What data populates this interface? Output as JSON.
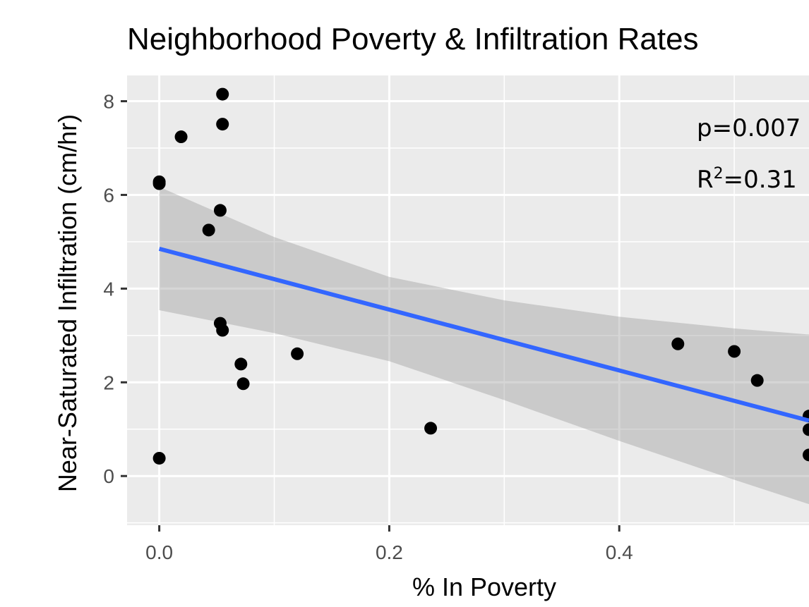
{
  "chart_data": {
    "type": "scatter",
    "title": "Neighborhood Poverty & Infiltration Rates",
    "xlabel": "% In Poverty",
    "ylabel": "Near-Saturated Infiltration (cm/hr)",
    "xlim": [
      -0.028,
      0.565
    ],
    "ylim": [
      -1.05,
      8.55
    ],
    "x_ticks": [
      0.0,
      0.2,
      0.4
    ],
    "x_tick_labels": [
      "0.0",
      "0.2",
      "0.4"
    ],
    "y_ticks": [
      0,
      2,
      4,
      6,
      8
    ],
    "y_tick_labels": [
      "0",
      "2",
      "4",
      "6",
      "8"
    ],
    "grid": true,
    "points": [
      {
        "x": 0.0,
        "y": 6.28
      },
      {
        "x": 0.0,
        "y": 6.24
      },
      {
        "x": 0.0,
        "y": 0.38
      },
      {
        "x": 0.019,
        "y": 7.24
      },
      {
        "x": 0.043,
        "y": 5.25
      },
      {
        "x": 0.053,
        "y": 5.67
      },
      {
        "x": 0.055,
        "y": 8.15
      },
      {
        "x": 0.055,
        "y": 7.51
      },
      {
        "x": 0.053,
        "y": 3.26
      },
      {
        "x": 0.055,
        "y": 3.11
      },
      {
        "x": 0.071,
        "y": 2.39
      },
      {
        "x": 0.073,
        "y": 1.97
      },
      {
        "x": 0.12,
        "y": 2.61
      },
      {
        "x": 0.236,
        "y": 1.02
      },
      {
        "x": 0.451,
        "y": 2.82
      },
      {
        "x": 0.5,
        "y": 2.66
      },
      {
        "x": 0.52,
        "y": 2.04
      },
      {
        "x": 0.565,
        "y": 1.28
      },
      {
        "x": 0.565,
        "y": 0.99
      },
      {
        "x": 0.565,
        "y": 0.45
      }
    ],
    "trend_line": {
      "intercept": 4.85,
      "slope": -6.49
    },
    "confidence_band": [
      {
        "x": 0.0,
        "lower": 3.54,
        "upper": 6.17
      },
      {
        "x": 0.1,
        "lower": 3.05,
        "upper": 5.1
      },
      {
        "x": 0.2,
        "lower": 2.45,
        "upper": 4.25
      },
      {
        "x": 0.3,
        "lower": 1.62,
        "upper": 3.75
      },
      {
        "x": 0.4,
        "lower": 0.75,
        "upper": 3.4
      },
      {
        "x": 0.5,
        "lower": -0.08,
        "upper": 3.15
      },
      {
        "x": 0.565,
        "lower": -0.6,
        "upper": 3.02
      }
    ],
    "annotations": {
      "p_text": "p=0.007",
      "r2_prefix": "R",
      "r2_sup": "2",
      "r2_value": "=0.31"
    },
    "colors": {
      "panel": "#ebebeb",
      "grid": "#ffffff",
      "points": "#000000",
      "line": "#3366ff",
      "band": "#999999"
    }
  }
}
